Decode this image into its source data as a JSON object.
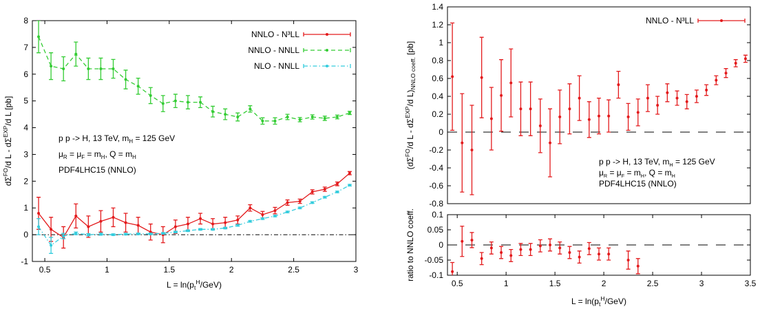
{
  "chart_data": [
    {
      "type": "line",
      "xlabel": [
        {
          "t": "L = ln(p"
        },
        {
          "t": "t",
          "s": "sub"
        },
        {
          "t": "H",
          "s": "sup"
        },
        {
          "t": "/GeV)"
        }
      ],
      "ylabel": [
        {
          "t": "dΣ"
        },
        {
          "t": "FO",
          "s": "sup"
        },
        {
          "t": "/d L - dΣ"
        },
        {
          "t": "EXP",
          "s": "sup"
        },
        {
          "t": "/d L [pb]"
        }
      ],
      "annotations": [
        [
          {
            "t": "p p -> H, 13 TeV, m"
          },
          {
            "t": "H",
            "s": "sub"
          },
          {
            "t": " = 125 GeV"
          }
        ],
        [
          {
            "t": "μ"
          },
          {
            "t": "R",
            "s": "sub"
          },
          {
            "t": " = μ"
          },
          {
            "t": "F",
            "s": "sub"
          },
          {
            "t": " = m"
          },
          {
            "t": "H",
            "s": "sub"
          },
          {
            "t": ", Q = m"
          },
          {
            "t": "H",
            "s": "sub"
          }
        ],
        [
          {
            "t": "PDF4LHC15 (NNLO)"
          }
        ]
      ],
      "xlim": [
        0.4,
        3
      ],
      "xticks": [
        0.5,
        1,
        1.5,
        2,
        2.5,
        3
      ],
      "ylim": [
        -1,
        8
      ],
      "yticks": [
        -1,
        0,
        1,
        2,
        3,
        4,
        5,
        6,
        7,
        8
      ],
      "hline": {
        "y": 0,
        "style": "dashdot"
      },
      "legend": "top-right",
      "x": [
        0.45,
        0.55,
        0.65,
        0.75,
        0.85,
        0.95,
        1.05,
        1.15,
        1.25,
        1.35,
        1.45,
        1.55,
        1.65,
        1.75,
        1.85,
        1.95,
        2.05,
        2.15,
        2.25,
        2.35,
        2.45,
        2.55,
        2.65,
        2.75,
        2.85,
        2.95
      ],
      "series": [
        {
          "name": "NNLO - N³LL",
          "color": "#e31a1c",
          "style": "solid",
          "values": [
            0.8,
            0.2,
            -0.1,
            0.7,
            0.3,
            0.5,
            0.65,
            0.45,
            0.35,
            0.1,
            0.0,
            0.3,
            0.4,
            0.6,
            0.4,
            0.45,
            0.55,
            1.0,
            0.75,
            0.9,
            1.2,
            1.25,
            1.6,
            1.7,
            1.9,
            2.3
          ],
          "errors": [
            0.6,
            0.45,
            0.4,
            0.45,
            0.4,
            0.4,
            0.35,
            0.35,
            0.3,
            0.3,
            0.3,
            0.25,
            0.25,
            0.2,
            0.2,
            0.2,
            0.15,
            0.12,
            0.12,
            0.12,
            0.1,
            0.08,
            0.08,
            0.08,
            0.07,
            0.06
          ]
        },
        {
          "name": "NNLO - NNLL",
          "color": "#33cc33",
          "style": "dashed",
          "values": [
            7.4,
            6.3,
            6.2,
            6.75,
            6.2,
            6.2,
            6.2,
            5.8,
            5.55,
            5.2,
            4.9,
            5.0,
            4.95,
            4.95,
            4.6,
            4.5,
            4.4,
            4.7,
            4.25,
            4.25,
            4.4,
            4.3,
            4.4,
            4.35,
            4.4,
            4.55
          ],
          "errors": [
            0.6,
            0.5,
            0.45,
            0.45,
            0.4,
            0.4,
            0.35,
            0.35,
            0.3,
            0.3,
            0.3,
            0.25,
            0.25,
            0.2,
            0.2,
            0.2,
            0.15,
            0.12,
            0.12,
            0.12,
            0.1,
            0.08,
            0.08,
            0.08,
            0.07,
            0.06
          ]
        },
        {
          "name": "NLO - NNLL",
          "color": "#33ccdd",
          "style": "dashdot",
          "values": [
            0.3,
            -0.4,
            -0.05,
            0.05,
            0.0,
            0.02,
            0.0,
            0.02,
            0.03,
            0.03,
            0.05,
            0.1,
            0.15,
            0.2,
            0.2,
            0.25,
            0.35,
            0.5,
            0.6,
            0.7,
            0.85,
            1.0,
            1.2,
            1.4,
            1.6,
            1.85
          ],
          "errors": [
            0.3,
            0.3,
            0.1,
            0.05,
            0.04,
            0.04,
            0.03,
            0.03,
            0.03,
            0.03,
            0.03,
            0.03,
            0.03,
            0.03,
            0.03,
            0.03,
            0.03,
            0.03,
            0.03,
            0.03,
            0.03,
            0.03,
            0.03,
            0.03,
            0.03,
            0.03
          ]
        }
      ]
    },
    {
      "type": "errorbar",
      "ylabel": [
        {
          "t": "(dΣ"
        },
        {
          "t": "FO",
          "s": "sup"
        },
        {
          "t": "/d L - dΣ"
        },
        {
          "t": "EXP",
          "s": "sup"
        },
        {
          "t": "/d L)"
        },
        {
          "t": "NNLO coeff.",
          "s": "sub"
        },
        {
          "t": " [pb]"
        }
      ],
      "annotations": [
        [
          {
            "t": "p p -> H, 13 TeV, m"
          },
          {
            "t": "H",
            "s": "sub"
          },
          {
            "t": " = 125 GeV"
          }
        ],
        [
          {
            "t": "μ"
          },
          {
            "t": "R",
            "s": "sub"
          },
          {
            "t": " = μ"
          },
          {
            "t": "F",
            "s": "sub"
          },
          {
            "t": " = m"
          },
          {
            "t": "H",
            "s": "sub"
          },
          {
            "t": ", Q = m"
          },
          {
            "t": "H",
            "s": "sub"
          }
        ],
        [
          {
            "t": "PDF4LHC15 (NNLO)"
          }
        ]
      ],
      "xlim": [
        0.4,
        3.5
      ],
      "ylim": [
        -0.8,
        1.4
      ],
      "yticks": [
        -0.8,
        -0.6,
        -0.4,
        -0.2,
        0,
        0.2,
        0.4,
        0.6,
        0.8,
        1,
        1.2,
        1.4
      ],
      "hline": {
        "y": 0,
        "style": "dashed"
      },
      "legend": "top-right",
      "x": [
        0.45,
        0.55,
        0.65,
        0.75,
        0.85,
        0.95,
        1.05,
        1.15,
        1.25,
        1.35,
        1.45,
        1.55,
        1.65,
        1.75,
        1.85,
        1.95,
        2.05,
        2.15,
        2.25,
        2.35,
        2.45,
        2.55,
        2.65,
        2.75,
        2.85,
        2.95,
        3.05,
        3.15,
        3.25,
        3.35,
        3.45
      ],
      "series": [
        {
          "name": "NNLO - N³LL",
          "color": "#e31a1c",
          "values": [
            0.62,
            -0.12,
            -0.2,
            0.61,
            0.15,
            0.41,
            0.55,
            0.26,
            0.26,
            0.07,
            -0.12,
            0.17,
            0.26,
            0.38,
            0.14,
            0.18,
            0.18,
            0.53,
            0.17,
            0.22,
            0.38,
            0.3,
            0.44,
            0.38,
            0.34,
            0.4,
            0.47,
            0.58,
            0.66,
            0.77,
            0.82
          ],
          "errors": [
            0.6,
            0.55,
            0.5,
            0.45,
            0.35,
            0.4,
            0.38,
            0.3,
            0.3,
            0.3,
            0.38,
            0.3,
            0.28,
            0.25,
            0.2,
            0.2,
            0.18,
            0.15,
            0.15,
            0.15,
            0.15,
            0.1,
            0.1,
            0.08,
            0.08,
            0.07,
            0.06,
            0.05,
            0.05,
            0.04,
            0.04
          ]
        }
      ]
    },
    {
      "type": "errorbar",
      "xlabel": [
        {
          "t": "L = ln(p"
        },
        {
          "t": "t",
          "s": "sub"
        },
        {
          "t": "H",
          "s": "sup"
        },
        {
          "t": "/GeV)"
        }
      ],
      "ylabel": [
        {
          "t": "ratio to NNLO coeff."
        }
      ],
      "xlim": [
        0.4,
        3.5
      ],
      "xticks": [
        0.5,
        1,
        1.5,
        2,
        2.5,
        3,
        3.5
      ],
      "ylim": [
        -0.1,
        0.1
      ],
      "yticks": [
        -0.1,
        -0.05,
        0,
        0.05,
        0.1
      ],
      "hline": {
        "y": 0,
        "style": "dashed"
      },
      "x": [
        0.45,
        0.55,
        0.65,
        0.75,
        0.85,
        0.95,
        1.05,
        1.15,
        1.25,
        1.35,
        1.45,
        1.55,
        1.65,
        1.75,
        1.85,
        1.95,
        2.05,
        2.15,
        2.25,
        2.35,
        2.45,
        2.55,
        2.65,
        2.75,
        2.85,
        2.95,
        3.05,
        3.15,
        3.25,
        3.35,
        3.45
      ],
      "series": [
        {
          "color": "#e31a1c",
          "values": [
            -0.088,
            0.012,
            0.016,
            -0.045,
            -0.01,
            -0.025,
            -0.035,
            -0.015,
            -0.015,
            -0.003,
            0.0,
            -0.01,
            -0.025,
            -0.04,
            -0.012,
            -0.03,
            -0.03,
            null,
            -0.05,
            -0.07,
            null,
            null,
            null,
            null,
            null,
            null,
            null,
            null,
            null,
            null,
            null
          ],
          "errors": [
            0.03,
            0.05,
            0.025,
            0.02,
            0.02,
            0.02,
            0.02,
            0.02,
            0.02,
            0.02,
            0.02,
            0.02,
            0.02,
            0.02,
            0.02,
            0.02,
            0.02,
            null,
            0.03,
            0.025,
            null,
            null,
            null,
            null,
            null,
            null,
            null,
            null,
            null,
            null,
            null
          ]
        }
      ]
    }
  ]
}
